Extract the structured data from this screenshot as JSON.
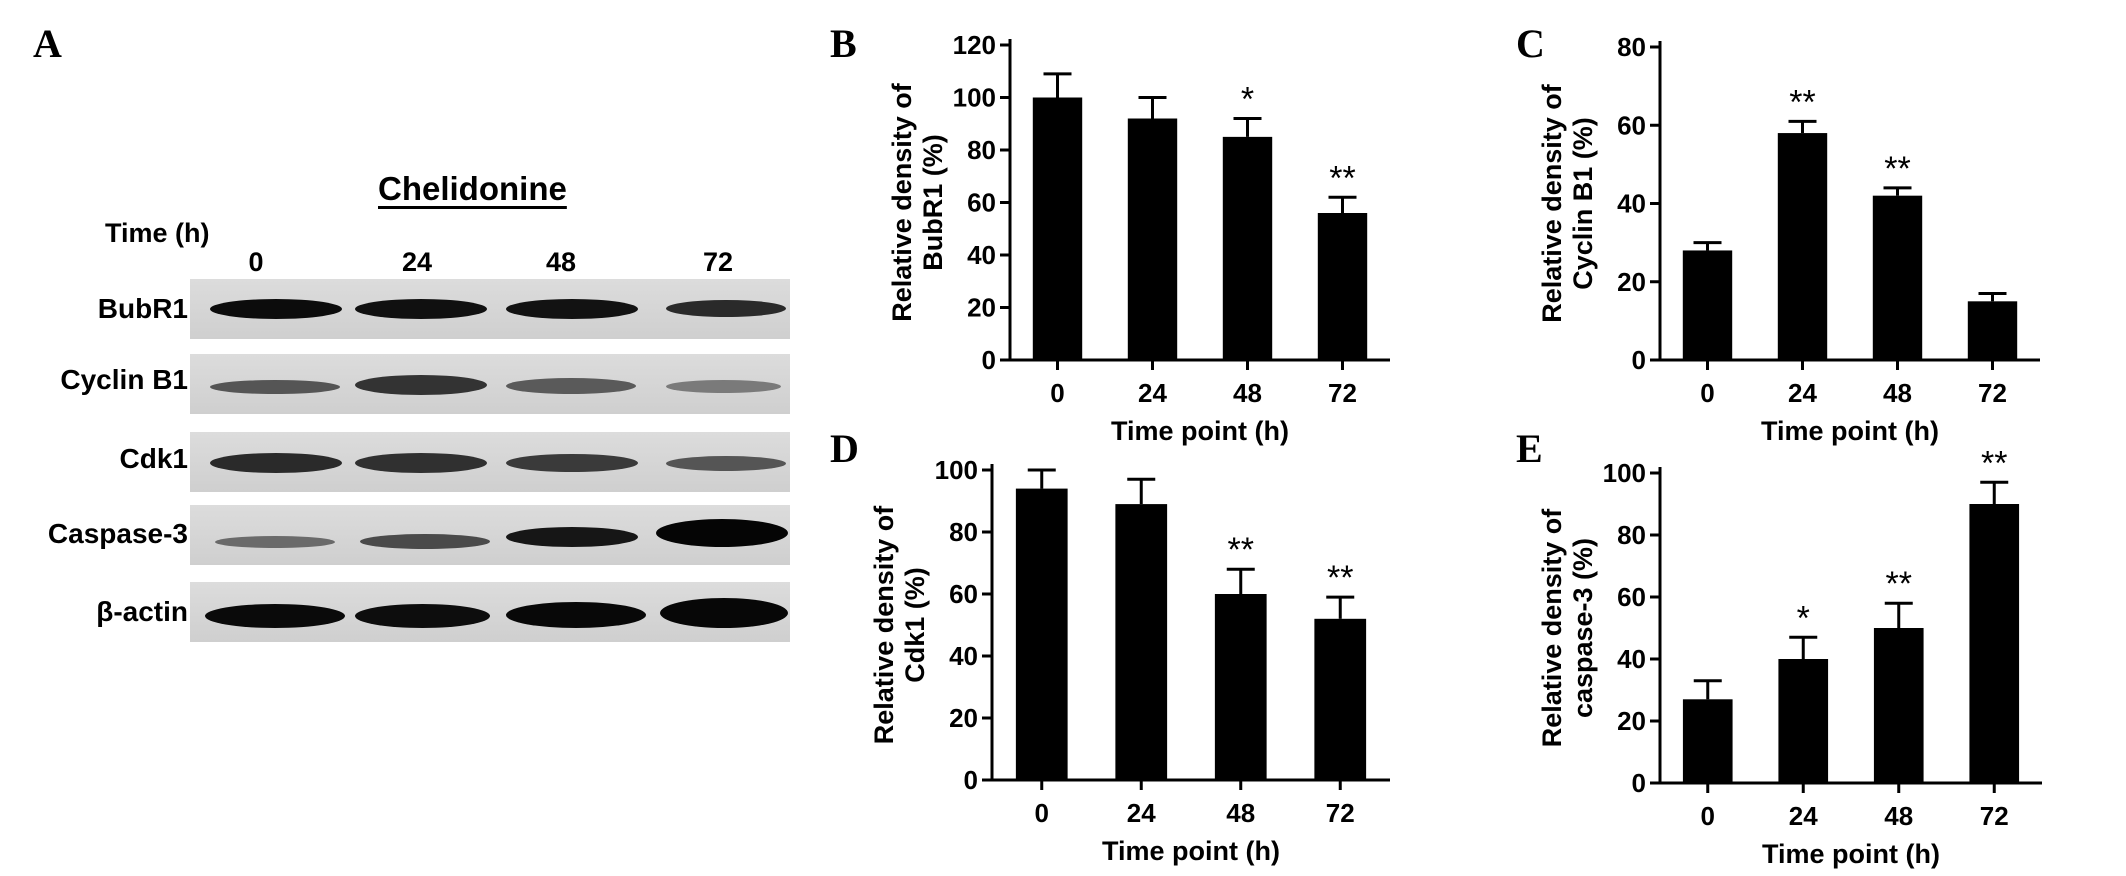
{
  "panels": [
    {
      "id": "A",
      "letter": "A"
    },
    {
      "id": "B",
      "letter": "B"
    },
    {
      "id": "C",
      "letter": "C"
    },
    {
      "id": "D",
      "letter": "D"
    },
    {
      "id": "E",
      "letter": "E"
    }
  ],
  "blot": {
    "treatment": "Chelidonine",
    "time_label": "Time (h)",
    "lanes": [
      "0",
      "24",
      "48",
      "72"
    ],
    "rows": [
      "BubR1",
      "Cyclin B1",
      "Cdk1",
      "Caspase-3",
      "β-actin"
    ]
  },
  "chart_data": [
    {
      "panel": "B",
      "type": "bar",
      "categories": [
        "0",
        "24",
        "48",
        "72"
      ],
      "values": [
        100,
        92,
        85,
        56
      ],
      "errors": [
        9,
        8,
        7,
        6
      ],
      "significance": [
        "",
        "",
        "*",
        "**"
      ],
      "ylabel": [
        "Relative density of",
        "BubR1 (%)"
      ],
      "xlabel": "Time point (h)",
      "ylim": [
        0,
        120
      ],
      "yticks": [
        0,
        20,
        40,
        60,
        80,
        100,
        120
      ],
      "color": "#000000"
    },
    {
      "panel": "C",
      "type": "bar",
      "categories": [
        "0",
        "24",
        "48",
        "72"
      ],
      "values": [
        28,
        58,
        42,
        15
      ],
      "errors": [
        2,
        3,
        2,
        2
      ],
      "significance": [
        "",
        "**",
        "**",
        ""
      ],
      "ylabel": [
        "Relative density of",
        "Cyclin B1 (%)"
      ],
      "xlabel": "Time point (h)",
      "ylim": [
        0,
        80
      ],
      "yticks": [
        0,
        20,
        40,
        60,
        80
      ],
      "color": "#000000"
    },
    {
      "panel": "D",
      "type": "bar",
      "categories": [
        "0",
        "24",
        "48",
        "72"
      ],
      "values": [
        94,
        89,
        60,
        52
      ],
      "errors": [
        6,
        8,
        8,
        7
      ],
      "significance": [
        "",
        "",
        "**",
        "**"
      ],
      "ylabel": [
        "Relative density of",
        "Cdk1 (%)"
      ],
      "xlabel": "Time point (h)",
      "ylim": [
        0,
        100
      ],
      "yticks": [
        0,
        20,
        40,
        60,
        80,
        100
      ],
      "color": "#000000"
    },
    {
      "panel": "E",
      "type": "bar",
      "categories": [
        "0",
        "24",
        "48",
        "72"
      ],
      "values": [
        27,
        40,
        50,
        90
      ],
      "errors": [
        6,
        7,
        8,
        7
      ],
      "significance": [
        "",
        "*",
        "**",
        "**"
      ],
      "ylabel": [
        "Relative density of",
        "caspase-3 (%)"
      ],
      "xlabel": "Time point (h)",
      "ylim": [
        0,
        100
      ],
      "yticks": [
        0,
        20,
        40,
        60,
        80,
        100
      ],
      "color": "#000000"
    }
  ]
}
